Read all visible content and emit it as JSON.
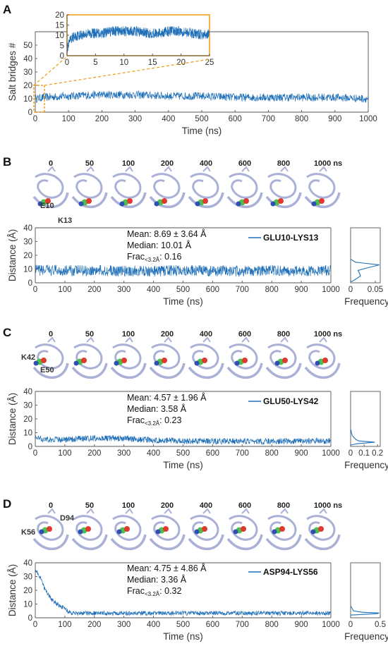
{
  "colors": {
    "series": "#1f6fb8",
    "inset": "#f0a020",
    "protein": "#aab0d6"
  },
  "panels": {
    "A": {
      "letter": "A"
    },
    "B": {
      "letter": "B",
      "snapshot_times": [
        "0",
        "50",
        "100",
        "200",
        "400",
        "600",
        "800",
        "1000 ns"
      ],
      "residue_labels": [
        "E10",
        "K13"
      ],
      "stats": {
        "mean": "Mean: 8.69 ± 3.64 Å",
        "median": "Median: 10.01 Å",
        "frac": "Frac",
        "frac_sub": "<3.2Å",
        "frac_val": ": 0.16"
      },
      "legend": "GLU10-LYS13"
    },
    "C": {
      "letter": "C",
      "snapshot_times": [
        "0",
        "50",
        "100",
        "200",
        "400",
        "600",
        "800",
        "1000 ns"
      ],
      "residue_labels": [
        "K42",
        "E50"
      ],
      "stats": {
        "mean": "Mean: 4.57 ± 1.96 Å",
        "median": "Median: 3.58 Å",
        "frac": "Frac",
        "frac_sub": "<3.2Å",
        "frac_val": ": 0.23"
      },
      "legend": "GLU50-LYS42"
    },
    "D": {
      "letter": "D",
      "snapshot_times": [
        "0",
        "50",
        "100",
        "200",
        "400",
        "600",
        "800",
        "1000 ns"
      ],
      "residue_labels": [
        "K56",
        "D94"
      ],
      "stats": {
        "mean": "Mean: 4.75 ± 4.86 Å",
        "median": "Median: 3.36 Å",
        "frac": "Frac",
        "frac_sub": "<3.2Å",
        "frac_val": ": 0.32"
      },
      "legend": "ASP94-LYS56"
    }
  },
  "chart_data": [
    {
      "id": "A-main",
      "type": "line",
      "xlabel": "Time (ns)",
      "ylabel": "Salt bridges #",
      "xlim": [
        0,
        1000
      ],
      "ylim": [
        0,
        60
      ],
      "xticks": [
        "0",
        "100",
        "200",
        "300",
        "400",
        "500",
        "600",
        "700",
        "800",
        "900",
        "1000"
      ],
      "yticks": [
        "0",
        "10",
        "20",
        "30",
        "40",
        "50"
      ],
      "series": [
        {
          "x": [
            0,
            25,
            100,
            200,
            300,
            400,
            500,
            600,
            700,
            800,
            900,
            1000
          ],
          "y": [
            10,
            11,
            12,
            13,
            13,
            12,
            12,
            11,
            11,
            11,
            11,
            10
          ],
          "noise": 3
        }
      ]
    },
    {
      "id": "A-inset",
      "type": "line",
      "xlim": [
        0,
        25
      ],
      "ylim": [
        0,
        20
      ],
      "xticks": [
        "0",
        "5",
        "10",
        "15",
        "20",
        "25"
      ],
      "yticks": [
        "0",
        "5",
        "10",
        "15",
        "20"
      ],
      "series": [
        {
          "x": [
            0,
            0.5,
            1,
            2,
            4,
            6,
            8,
            10,
            12,
            14,
            16,
            18,
            20,
            22,
            24,
            25
          ],
          "y": [
            3,
            7,
            9,
            10,
            11,
            11,
            12,
            12,
            12,
            11,
            11,
            12,
            12,
            11,
            10,
            11
          ],
          "noise": 2.5
        }
      ]
    },
    {
      "id": "B-main",
      "type": "line",
      "xlabel": "Time (ns)",
      "ylabel": "Distance (Å)",
      "xlim": [
        0,
        1000
      ],
      "ylim": [
        0,
        40
      ],
      "xticks": [
        "0",
        "100",
        "200",
        "300",
        "400",
        "500",
        "600",
        "700",
        "800",
        "900",
        "1000"
      ],
      "yticks": [
        "0",
        "10",
        "20",
        "30",
        "40"
      ],
      "series": [
        {
          "name": "GLU10-LYS13",
          "x": [
            0,
            100,
            200,
            300,
            400,
            500,
            600,
            700,
            800,
            900,
            1000
          ],
          "y": [
            9,
            9,
            9,
            8.5,
            8.5,
            9,
            8.5,
            8.5,
            9,
            8.5,
            9
          ],
          "noise": 4
        }
      ]
    },
    {
      "id": "B-hist",
      "type": "area",
      "xlabel": "Frequency",
      "xlim": [
        0,
        0.06
      ],
      "ylim": [
        0,
        40
      ],
      "xticks": [
        "0",
        "0.05"
      ],
      "series": [
        {
          "y": [
            1,
            3,
            5,
            7,
            9,
            11,
            13,
            15,
            17
          ],
          "x": [
            0.003,
            0.012,
            0.02,
            0.018,
            0.015,
            0.035,
            0.058,
            0.01,
            0.001
          ]
        }
      ]
    },
    {
      "id": "C-main",
      "type": "line",
      "xlabel": "Time (ns)",
      "ylabel": "Distance (Å)",
      "xlim": [
        0,
        1000
      ],
      "ylim": [
        0,
        40
      ],
      "xticks": [
        "0",
        "100",
        "200",
        "300",
        "400",
        "500",
        "600",
        "700",
        "800",
        "900",
        "1000"
      ],
      "yticks": [
        "0",
        "10",
        "20",
        "30",
        "40"
      ],
      "series": [
        {
          "name": "GLU50-LYS42",
          "x": [
            0,
            50,
            100,
            200,
            300,
            350,
            400,
            500,
            600,
            700,
            800,
            900,
            1000
          ],
          "y": [
            6,
            5,
            5,
            6,
            6,
            5,
            4.5,
            4,
            3.8,
            3.8,
            3.8,
            3.8,
            4
          ],
          "noise": 2.2
        }
      ]
    },
    {
      "id": "C-hist",
      "type": "area",
      "xlabel": "Frequency",
      "xlim": [
        0,
        0.22
      ],
      "ylim": [
        0,
        40
      ],
      "xticks": [
        "0",
        "0.1",
        "0.2"
      ],
      "series": [
        {
          "y": [
            1,
            2,
            3,
            4,
            5,
            6,
            7,
            8,
            10,
            12
          ],
          "x": [
            0.003,
            0.05,
            0.18,
            0.06,
            0.04,
            0.03,
            0.02,
            0.012,
            0.006,
            0.002
          ]
        }
      ]
    },
    {
      "id": "D-main",
      "type": "line",
      "xlabel": "Time (ns)",
      "ylabel": "Distance (Å)",
      "xlim": [
        0,
        1000
      ],
      "ylim": [
        0,
        40
      ],
      "xticks": [
        "0",
        "100",
        "200",
        "300",
        "400",
        "500",
        "600",
        "700",
        "800",
        "900",
        "1000"
      ],
      "yticks": [
        "0",
        "10",
        "20",
        "30",
        "40"
      ],
      "series": [
        {
          "name": "ASP94-LYS56",
          "x": [
            0,
            10,
            20,
            30,
            40,
            60,
            80,
            100,
            110,
            120,
            200,
            400,
            600,
            800,
            1000
          ],
          "y": [
            35,
            32,
            28,
            22,
            18,
            12,
            9,
            7,
            4.5,
            3.4,
            3.3,
            3.4,
            3.3,
            3.3,
            3.4
          ],
          "noise": 1.6
        }
      ]
    },
    {
      "id": "D-hist",
      "type": "area",
      "xlabel": "Frequency",
      "xlim": [
        0,
        0.5
      ],
      "ylim": [
        0,
        40
      ],
      "xticks": [
        "0",
        "0.5"
      ],
      "series": [
        {
          "y": [
            2,
            3,
            3.5,
            4,
            5,
            8
          ],
          "x": [
            0.02,
            0.45,
            0.48,
            0.2,
            0.05,
            0.01
          ]
        }
      ]
    }
  ]
}
